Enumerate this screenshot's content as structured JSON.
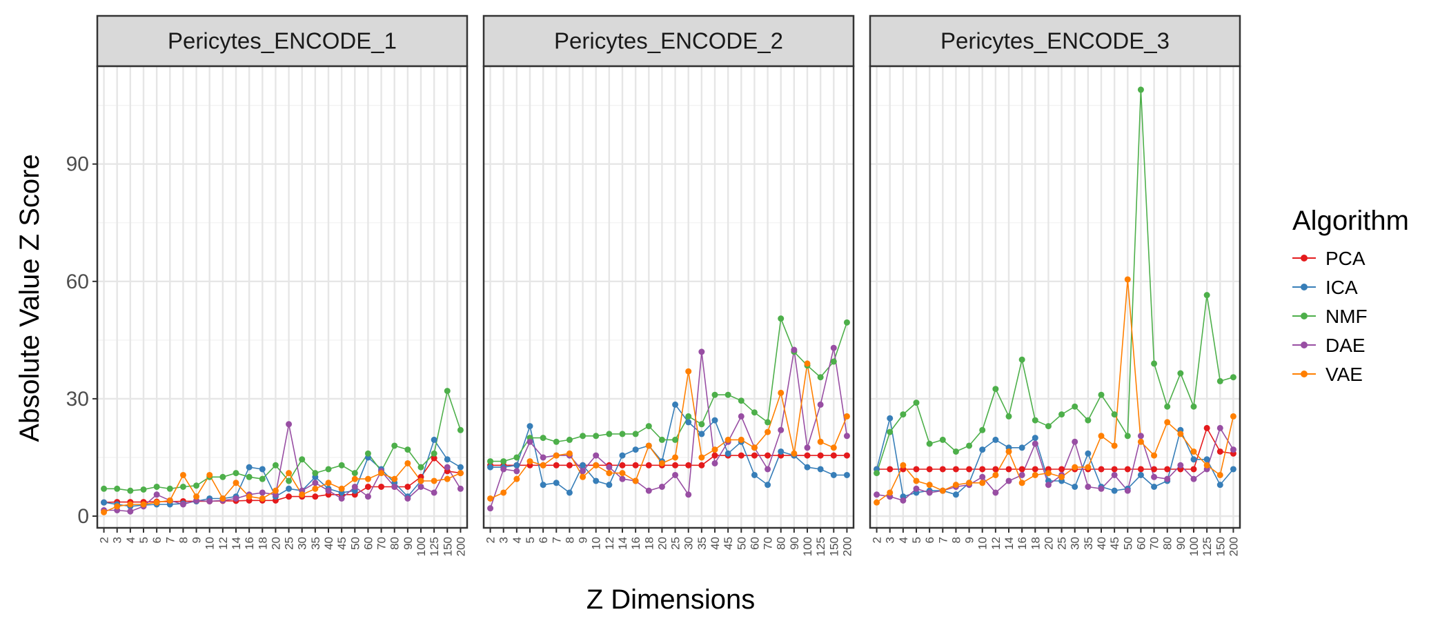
{
  "chart_data": {
    "type": "line",
    "xlabel": "Z Dimensions",
    "ylabel": "Absolute Value Z Score",
    "ylim": [
      -3,
      115
    ],
    "yticks": [
      0,
      30,
      60,
      90
    ],
    "grid": true,
    "legend_placement": "right",
    "legend_title": "Algorithm",
    "categories": [
      "2",
      "3",
      "4",
      "5",
      "6",
      "7",
      "8",
      "9",
      "10",
      "12",
      "14",
      "16",
      "18",
      "20",
      "25",
      "30",
      "35",
      "40",
      "45",
      "50",
      "60",
      "70",
      "80",
      "90",
      "100",
      "125",
      "150",
      "200"
    ],
    "series_styles": [
      {
        "name": "PCA",
        "color": "#e41a1c"
      },
      {
        "name": "ICA",
        "color": "#377eb8"
      },
      {
        "name": "NMF",
        "color": "#4daf4a"
      },
      {
        "name": "DAE",
        "color": "#984ea3"
      },
      {
        "name": "VAE",
        "color": "#ff7f00"
      }
    ],
    "panels": [
      {
        "title": "Pericytes_ENCODE_1",
        "series": [
          {
            "name": "PCA",
            "values": [
              3.5,
              3.6,
              3.6,
              3.6,
              3.7,
              3.7,
              3.8,
              3.8,
              3.8,
              3.9,
              3.9,
              4.0,
              4.0,
              4.0,
              5.0,
              5.0,
              5.0,
              5.5,
              5.5,
              5.5,
              7.5,
              7.5,
              7.5,
              7.5,
              10.0,
              14.8,
              11.5,
              11.0
            ]
          },
          {
            "name": "ICA",
            "values": [
              3.5,
              3.0,
              2.5,
              2.8,
              3.0,
              3.0,
              3.2,
              3.8,
              4.5,
              4.5,
              5.0,
              12.5,
              12.0,
              5.0,
              7.0,
              6.5,
              10.0,
              7.0,
              6.0,
              6.5,
              15.0,
              12.0,
              8.5,
              5.0,
              9.0,
              19.5,
              14.5,
              12.5
            ]
          },
          {
            "name": "NMF",
            "values": [
              7.0,
              7.0,
              6.5,
              6.8,
              7.5,
              7.0,
              7.5,
              7.8,
              10.0,
              10.0,
              11.0,
              10.0,
              9.5,
              13.0,
              9.0,
              14.5,
              11.0,
              12.0,
              13.0,
              11.0,
              16.0,
              11.5,
              18.0,
              17.0,
              12.5,
              16.0,
              32.0,
              22.0
            ]
          },
          {
            "name": "DAE",
            "values": [
              1.5,
              1.5,
              1.2,
              2.5,
              5.5,
              4.0,
              3.0,
              4.0,
              3.8,
              4.0,
              4.5,
              5.5,
              6.0,
              5.5,
              23.5,
              6.5,
              8.5,
              6.5,
              4.5,
              7.5,
              5.0,
              11.5,
              7.5,
              4.5,
              7.5,
              6.0,
              12.5,
              7.0
            ]
          },
          {
            "name": "VAE",
            "values": [
              1.0,
              2.5,
              3.0,
              3.0,
              3.5,
              4.0,
              10.5,
              5.0,
              10.5,
              4.5,
              8.5,
              5.0,
              4.5,
              6.5,
              11.0,
              5.5,
              7.0,
              8.5,
              7.0,
              9.5,
              9.5,
              11.0,
              9.5,
              13.5,
              9.0,
              9.0,
              9.5,
              11.0
            ]
          }
        ]
      },
      {
        "title": "Pericytes_ENCODE_2",
        "series": [
          {
            "name": "PCA",
            "values": [
              13.0,
              13.0,
              13.0,
              13.0,
              13.0,
              13.0,
              13.0,
              13.0,
              13.0,
              13.0,
              13.0,
              13.0,
              13.0,
              13.0,
              13.0,
              13.0,
              13.0,
              15.5,
              15.5,
              15.5,
              15.5,
              15.5,
              15.5,
              15.5,
              15.5,
              15.5,
              15.5,
              15.5
            ]
          },
          {
            "name": "ICA",
            "values": [
              12.5,
              12.5,
              13.0,
              23.0,
              8.0,
              8.5,
              6.0,
              13.0,
              9.0,
              8.0,
              15.5,
              17.0,
              18.0,
              14.0,
              28.5,
              24.0,
              21.0,
              24.5,
              16.0,
              19.0,
              10.5,
              8.0,
              16.5,
              15.5,
              12.5,
              12.0,
              10.5,
              10.5
            ]
          },
          {
            "name": "NMF",
            "values": [
              14.0,
              14.0,
              15.0,
              20.0,
              20.0,
              19.0,
              19.5,
              20.5,
              20.5,
              21.0,
              21.0,
              21.0,
              23.0,
              19.5,
              19.5,
              25.5,
              23.5,
              31.0,
              31.0,
              29.5,
              26.5,
              24.0,
              50.5,
              42.0,
              38.5,
              35.5,
              39.5,
              49.5
            ]
          },
          {
            "name": "DAE",
            "values": [
              2.0,
              12.0,
              11.5,
              19.0,
              15.0,
              15.5,
              15.5,
              11.5,
              15.5,
              12.5,
              9.5,
              9.0,
              6.5,
              7.5,
              10.5,
              5.5,
              42.0,
              13.5,
              19.0,
              25.5,
              17.5,
              12.0,
              22.0,
              42.5,
              17.5,
              28.5,
              43.0,
              20.5
            ]
          },
          {
            "name": "VAE",
            "values": [
              4.5,
              6.0,
              9.5,
              14.0,
              13.0,
              15.5,
              16.0,
              10.0,
              13.0,
              11.0,
              11.0,
              9.0,
              18.0,
              13.5,
              15.0,
              37.0,
              15.0,
              17.0,
              19.5,
              19.5,
              17.5,
              21.5,
              31.5,
              16.0,
              39.0,
              19.0,
              17.5,
              25.5
            ]
          }
        ]
      },
      {
        "title": "Pericytes_ENCODE_3",
        "series": [
          {
            "name": "PCA",
            "values": [
              12.0,
              12.0,
              12.0,
              12.0,
              12.0,
              12.0,
              12.0,
              12.0,
              12.0,
              12.0,
              12.0,
              12.0,
              12.0,
              12.0,
              12.0,
              12.0,
              12.0,
              12.0,
              12.0,
              12.0,
              12.0,
              12.0,
              12.0,
              12.0,
              12.0,
              22.5,
              16.5,
              16.0
            ]
          },
          {
            "name": "ICA",
            "values": [
              12.0,
              25.0,
              5.0,
              6.0,
              6.5,
              6.5,
              5.5,
              8.5,
              17.0,
              19.5,
              17.5,
              17.5,
              20.0,
              9.0,
              9.0,
              7.5,
              16.0,
              7.5,
              6.5,
              7.0,
              10.5,
              7.5,
              9.0,
              22.0,
              14.5,
              14.5,
              8.0,
              12.0
            ]
          },
          {
            "name": "NMF",
            "values": [
              11.0,
              21.5,
              26.0,
              29.0,
              18.5,
              19.5,
              16.5,
              18.0,
              22.0,
              32.5,
              25.5,
              40.0,
              24.5,
              23.0,
              26.0,
              28.0,
              24.5,
              31.0,
              26.0,
              20.5,
              109.0,
              39.0,
              28.0,
              36.5,
              28.0,
              56.5,
              34.5,
              35.5
            ]
          },
          {
            "name": "DAE",
            "values": [
              5.5,
              5.0,
              4.0,
              7.0,
              6.0,
              6.5,
              7.5,
              8.0,
              10.0,
              6.0,
              9.0,
              10.5,
              18.5,
              8.0,
              10.5,
              19.0,
              7.5,
              7.0,
              10.5,
              6.5,
              20.5,
              10.0,
              9.5,
              13.0,
              9.5,
              12.0,
              22.5,
              17.0
            ]
          },
          {
            "name": "VAE",
            "values": [
              3.5,
              6.0,
              13.0,
              9.0,
              8.0,
              6.5,
              8.0,
              8.5,
              8.5,
              10.5,
              16.5,
              8.5,
              10.5,
              11.0,
              10.0,
              12.5,
              12.5,
              20.5,
              18.0,
              60.5,
              19.0,
              15.5,
              24.0,
              21.0,
              16.5,
              13.0,
              10.5,
              25.5
            ]
          }
        ]
      }
    ]
  }
}
